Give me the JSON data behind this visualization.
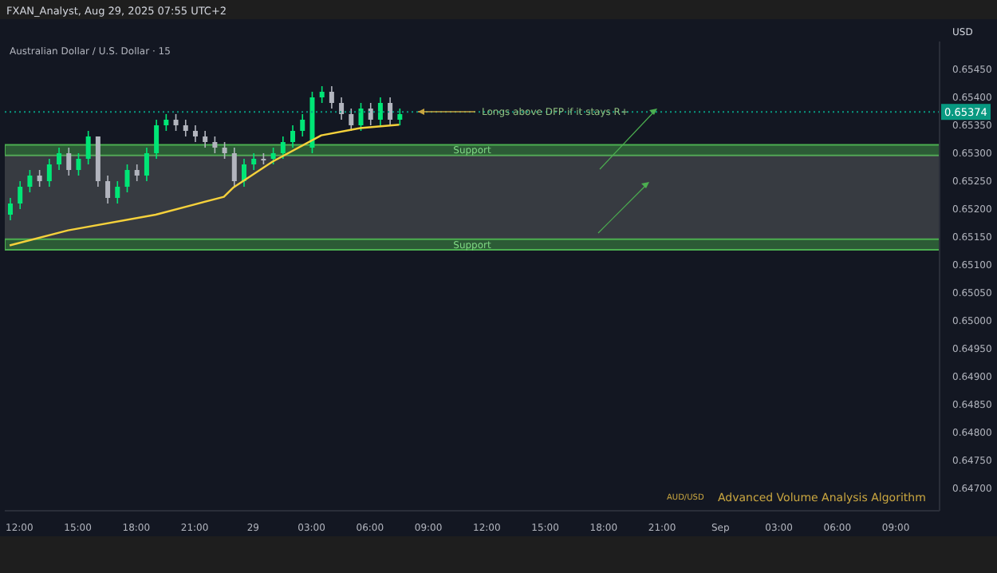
{
  "chart_data": {
    "type": "candlestick",
    "title": "Australian Dollar / U.S. Dollar · 15",
    "ylabel": "USD",
    "annotations": [
      "FXAN_Analyst, Aug 29, 2025 07:55 UTC+2",
      "Longs above DFP if it stays R+",
      "AUD/USD",
      "Advanced Volume Analysis Algorithm"
    ],
    "categories": [
      null,
      "12:00",
      null,
      null,
      null,
      null,
      null,
      "15:00",
      null,
      null,
      null,
      null,
      null,
      "18:00",
      null,
      null,
      null,
      null,
      null,
      "21:00",
      null,
      null,
      null,
      null,
      null,
      "29",
      null,
      null,
      null,
      null,
      null,
      "03:00",
      null,
      null,
      null,
      null,
      null,
      "06:00",
      null,
      null,
      null,
      null,
      null,
      "09:00",
      null,
      null,
      null,
      null,
      null,
      "12:00",
      null,
      null,
      null,
      null,
      null,
      "15:00",
      null,
      null,
      null,
      null,
      null,
      "18:00",
      null,
      null,
      null,
      null,
      null,
      "21:00",
      null,
      null,
      null,
      null,
      null,
      "Sep",
      null,
      null,
      null,
      null,
      null,
      "03:00",
      null,
      null,
      null,
      null,
      null,
      "06:00",
      null,
      null,
      null,
      null,
      null,
      "09:00",
      null,
      null,
      null,
      null
    ],
    "ohlc": [
      [
        0.6519,
        0.6522,
        0.6518,
        0.6521
      ],
      [
        0.6521,
        0.6525,
        0.652,
        0.6524
      ],
      [
        0.6524,
        0.6527,
        0.6523,
        0.6526
      ],
      [
        0.6526,
        0.6527,
        0.6524,
        0.6525
      ],
      [
        0.6525,
        0.6529,
        0.6524,
        0.6528
      ],
      [
        0.6528,
        0.6531,
        0.6527,
        0.653
      ],
      [
        0.653,
        0.6531,
        0.6526,
        0.6527
      ],
      [
        0.6527,
        0.653,
        0.6526,
        0.6529
      ],
      [
        0.6529,
        0.6534,
        0.6528,
        0.6533
      ],
      [
        0.6533,
        0.6533,
        0.6524,
        0.6525
      ],
      [
        0.6525,
        0.6526,
        0.6521,
        0.6522
      ],
      [
        0.6522,
        0.6525,
        0.6521,
        0.6524
      ],
      [
        0.6524,
        0.6528,
        0.6523,
        0.6527
      ],
      [
        0.6527,
        0.6528,
        0.6525,
        0.6526
      ],
      [
        0.6526,
        0.6531,
        0.6525,
        0.653
      ],
      [
        0.653,
        0.6536,
        0.6529,
        0.6535
      ],
      [
        0.6535,
        0.6537,
        0.6534,
        0.6536
      ],
      [
        0.6536,
        0.6537,
        0.6534,
        0.6535
      ],
      [
        0.6535,
        0.6536,
        0.6533,
        0.6534
      ],
      [
        0.6534,
        0.6535,
        0.6532,
        0.6533
      ],
      [
        0.6533,
        0.6534,
        0.6531,
        0.6532
      ],
      [
        0.6532,
        0.6533,
        0.653,
        0.6531
      ],
      [
        0.6531,
        0.6532,
        0.6529,
        0.653
      ],
      [
        0.653,
        0.6531,
        0.6524,
        0.6525
      ],
      [
        0.6525,
        0.6529,
        0.6524,
        0.6528
      ],
      [
        0.6528,
        0.653,
        0.6527,
        0.6529
      ],
      [
        0.6529,
        0.653,
        0.6528,
        0.6529
      ],
      [
        0.6529,
        0.6531,
        0.6528,
        0.653
      ],
      [
        0.653,
        0.6533,
        0.6529,
        0.6532
      ],
      [
        0.6532,
        0.6535,
        0.6531,
        0.6534
      ],
      [
        0.6534,
        0.6537,
        0.6533,
        0.6536
      ],
      [
        0.6531,
        0.6541,
        0.653,
        0.654
      ],
      [
        0.654,
        0.6542,
        0.6539,
        0.6541
      ],
      [
        0.6541,
        0.6542,
        0.6538,
        0.6539
      ],
      [
        0.6539,
        0.654,
        0.6536,
        0.6537
      ],
      [
        0.6537,
        0.6538,
        0.6534,
        0.6535
      ],
      [
        0.6535,
        0.6539,
        0.6534,
        0.6538
      ],
      [
        0.6538,
        0.6539,
        0.6535,
        0.6536
      ],
      [
        0.6536,
        0.654,
        0.6535,
        0.6539
      ],
      [
        0.6539,
        0.654,
        0.6535,
        0.6536
      ],
      [
        0.6536,
        0.6538,
        0.6535,
        0.6537
      ],
      null,
      null,
      null,
      null,
      null,
      null,
      null,
      null,
      null,
      null,
      null,
      null,
      null,
      null,
      null,
      null,
      null,
      null,
      null,
      null,
      null,
      null,
      null,
      null,
      null,
      null,
      null,
      null,
      null,
      null,
      null,
      null,
      null,
      null,
      null,
      null,
      null,
      null,
      null,
      null,
      null,
      null,
      null,
      null,
      null,
      null,
      null,
      null,
      null,
      null,
      null,
      null,
      null,
      null,
      null
    ],
    "colors": [
      "#00e676",
      "#00e676",
      "#00e676",
      "#b2b5be",
      "#00e676",
      "#00e676",
      "#b2b5be",
      "#00e676",
      "#00e676",
      "#b2b5be",
      "#b2b5be",
      "#00e676",
      "#00e676",
      "#b2b5be",
      "#00e676",
      "#00e676",
      "#00e676",
      "#b2b5be",
      "#b2b5be",
      "#b2b5be",
      "#b2b5be",
      "#b2b5be",
      "#b2b5be",
      "#b2b5be",
      "#00e676",
      "#00e676",
      "#b2b5be",
      "#00e676",
      "#00e676",
      "#00e676",
      "#00e676",
      "#00e676",
      "#00e676",
      "#b2b5be",
      "#b2b5be",
      "#b2b5be",
      "#00e676",
      "#b2b5be",
      "#00e676",
      "#b2b5be",
      "#00e676",
      null,
      null,
      null,
      null,
      null,
      null,
      null,
      null,
      null,
      null,
      null,
      null,
      null,
      null,
      null,
      null,
      null,
      null,
      null,
      null,
      null,
      null,
      null,
      null,
      null,
      null,
      null,
      null,
      null,
      null,
      null,
      null,
      null,
      null,
      null,
      null,
      null,
      null,
      null,
      null,
      null,
      null,
      null,
      null,
      null,
      null,
      null,
      null,
      null,
      null,
      null,
      null,
      null,
      null,
      null
    ],
    "series": [
      {
        "type": "line",
        "color": "#f5d13b",
        "values": [
          0.65135,
          null,
          null,
          null,
          null,
          null,
          0.65162,
          null,
          null,
          null,
          null,
          null,
          null,
          null,
          null,
          0.6519,
          null,
          null,
          null,
          null,
          null,
          null,
          0.65222,
          0.65239,
          null,
          null,
          null,
          0.65285,
          null,
          null,
          null,
          null,
          0.65332,
          null,
          null,
          null,
          0.65345,
          null,
          null,
          null,
          0.65351,
          null,
          null,
          null,
          null,
          null,
          null,
          null,
          null,
          null,
          null,
          null,
          null,
          null,
          null,
          null,
          null,
          null,
          null,
          null,
          null,
          null,
          null,
          null,
          null,
          null,
          null,
          null,
          null,
          null,
          null,
          null,
          null,
          null,
          null,
          null,
          null,
          null,
          null,
          null,
          null,
          null,
          null,
          null,
          null,
          null,
          null,
          null,
          null,
          null,
          null,
          null,
          null,
          null,
          null,
          null
        ]
      }
    ],
    "ylim": [
      0.6466,
      0.655
    ],
    "yticks": [
      {
        "value": 0.647,
        "label": "0.64700"
      },
      {
        "value": 0.6475,
        "label": "0.64750"
      },
      {
        "value": 0.648,
        "label": "0.64800"
      },
      {
        "value": 0.6485,
        "label": "0.64850"
      },
      {
        "value": 0.649,
        "label": "0.64900"
      },
      {
        "value": 0.6495,
        "label": "0.64950"
      },
      {
        "value": 0.65,
        "label": "0.65000"
      },
      {
        "value": 0.6505,
        "label": "0.65050"
      },
      {
        "value": 0.651,
        "label": "0.65100"
      },
      {
        "value": 0.6515,
        "label": "0.65150"
      },
      {
        "value": 0.652,
        "label": "0.65200"
      },
      {
        "value": 0.6525,
        "label": "0.65250"
      },
      {
        "value": 0.653,
        "label": "0.65300"
      },
      {
        "value": 0.6535,
        "label": "0.65350"
      },
      {
        "value": 0.654,
        "label": "0.65400"
      },
      {
        "value": 0.6545,
        "label": "0.65450"
      }
    ],
    "ref_lines": [
      {
        "axis": "y",
        "value": 0.65374,
        "label": "0.65374",
        "color": "#089981",
        "line_style": "dotted"
      }
    ],
    "bands": [
      {
        "axis": "y",
        "from": 0.65296,
        "to": 0.65315,
        "label": "Support",
        "color": "#4caf50"
      },
      {
        "axis": "y",
        "from": 0.65146,
        "to": 0.65296,
        "color": "#7a7f7a"
      },
      {
        "axis": "y",
        "from": 0.65127,
        "to": 0.65146,
        "label": "Support",
        "color": "#4caf50"
      }
    ],
    "tick_labels": "xy"
  }
}
